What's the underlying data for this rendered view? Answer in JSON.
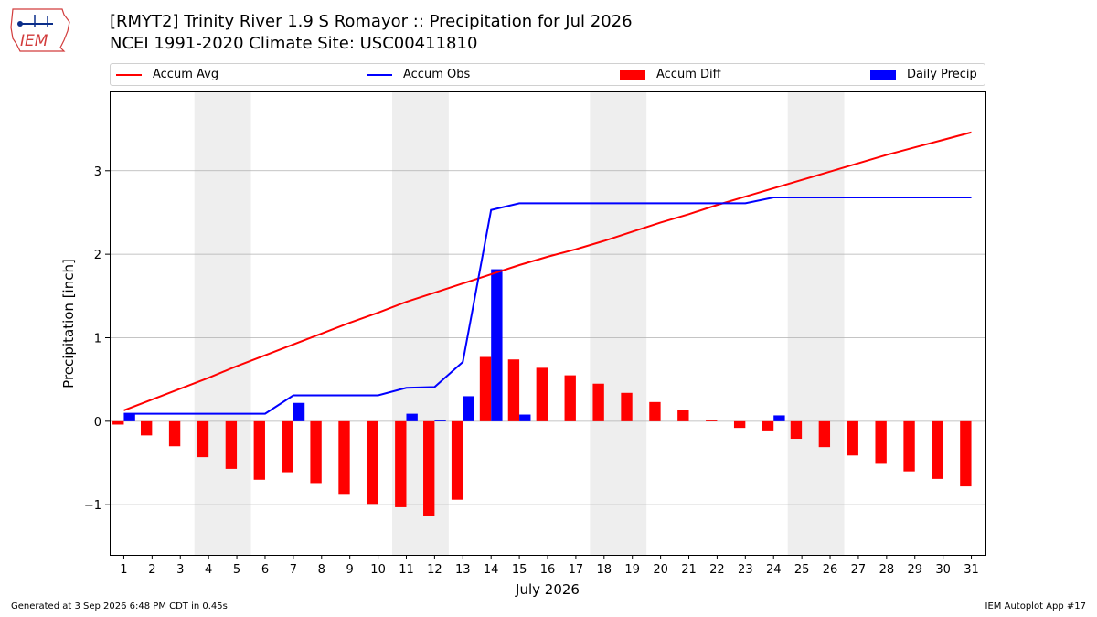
{
  "header": {
    "title_line1": "[RMYT2] Trinity River 1.9 S Romayor :: Precipitation for Jul 2026",
    "title_line2": "NCEI 1991-2020 Climate Site: USC00411810",
    "logo_text": "IEM"
  },
  "footer": {
    "generated": "Generated at 3 Sep 2026 6:48 PM CDT in 0.45s",
    "app": "IEM Autoplot App #17"
  },
  "colors": {
    "avg": "#ff0000",
    "obs": "#0000ff",
    "diff": "#ff0000",
    "daily": "#0000ff",
    "weekend_band": "#eeeeee",
    "grid": "#b0b0b0"
  },
  "chart_data": {
    "type": "bar",
    "xlabel": "July 2026",
    "ylabel": "Precipitation [inch]",
    "ylim": [
      -1.6,
      3.95
    ],
    "yticks": [
      -1,
      0,
      1,
      2,
      3
    ],
    "ytick_labels": [
      "−1",
      "0",
      "1",
      "2",
      "3"
    ],
    "grid": "horizontal",
    "legend_position": "top",
    "x": [
      1,
      2,
      3,
      4,
      5,
      6,
      7,
      8,
      9,
      10,
      11,
      12,
      13,
      14,
      15,
      16,
      17,
      18,
      19,
      20,
      21,
      22,
      23,
      24,
      25,
      26,
      27,
      28,
      29,
      30,
      31
    ],
    "weekend_spans": [
      [
        4,
        5
      ],
      [
        11,
        12
      ],
      [
        18,
        19
      ],
      [
        25,
        26
      ]
    ],
    "series": [
      {
        "name": "Accum Avg",
        "kind": "line",
        "values": [
          0.13,
          0.26,
          0.39,
          0.52,
          0.66,
          0.79,
          0.92,
          1.05,
          1.18,
          1.3,
          1.43,
          1.54,
          1.65,
          1.76,
          1.87,
          1.97,
          2.06,
          2.16,
          2.27,
          2.38,
          2.48,
          2.59,
          2.69,
          2.79,
          2.89,
          2.99,
          3.09,
          3.19,
          3.28,
          3.37,
          3.46
        ]
      },
      {
        "name": "Accum Obs",
        "kind": "line",
        "values": [
          0.09,
          0.09,
          0.09,
          0.09,
          0.09,
          0.09,
          0.31,
          0.31,
          0.31,
          0.31,
          0.4,
          0.41,
          0.71,
          2.53,
          2.61,
          2.61,
          2.61,
          2.61,
          2.61,
          2.61,
          2.61,
          2.61,
          2.61,
          2.68,
          2.68,
          2.68,
          2.68,
          2.68,
          2.68,
          2.68,
          2.68
        ]
      },
      {
        "name": "Accum Diff",
        "kind": "bar",
        "values": [
          -0.04,
          -0.17,
          -0.3,
          -0.43,
          -0.57,
          -0.7,
          -0.61,
          -0.74,
          -0.87,
          -0.99,
          -1.03,
          -1.13,
          -0.94,
          0.77,
          0.74,
          0.64,
          0.55,
          0.45,
          0.34,
          0.23,
          0.13,
          0.02,
          -0.08,
          -0.11,
          -0.21,
          -0.31,
          -0.41,
          -0.51,
          -0.6,
          -0.69,
          -0.78
        ]
      },
      {
        "name": "Daily Precip",
        "kind": "bar",
        "values": [
          0.09,
          0,
          0,
          0,
          0,
          0,
          0.22,
          0,
          0,
          0,
          0.09,
          0.01,
          0.3,
          1.82,
          0.08,
          0,
          0,
          0,
          0,
          0,
          0,
          0,
          0,
          0.07,
          0,
          0,
          0,
          0,
          0,
          0,
          0
        ]
      }
    ]
  }
}
